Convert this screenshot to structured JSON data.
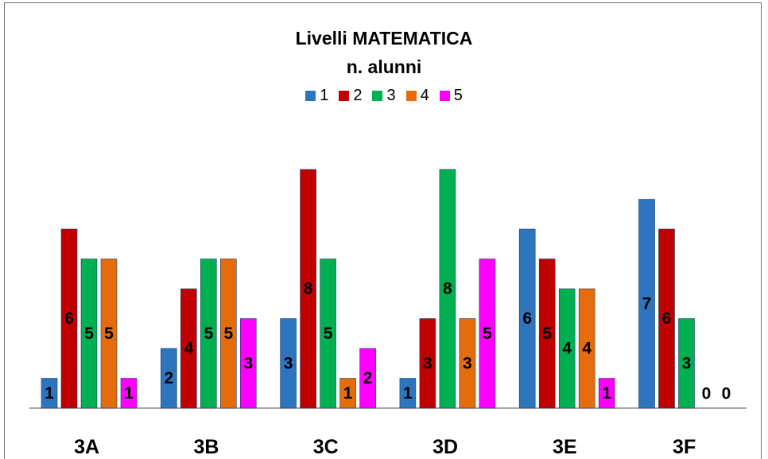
{
  "chart_data": {
    "type": "bar",
    "title": "Livelli MATEMATICA",
    "subtitle": "n. alunni",
    "categories": [
      "3A",
      "3B",
      "3C",
      "3D",
      "3E",
      "3F"
    ],
    "series": [
      {
        "name": "1",
        "color": "#2E75C0",
        "values": [
          1,
          2,
          3,
          1,
          6,
          7
        ]
      },
      {
        "name": "2",
        "color": "#C00000",
        "values": [
          6,
          4,
          8,
          3,
          5,
          6
        ]
      },
      {
        "name": "3",
        "color": "#00B050",
        "values": [
          5,
          5,
          5,
          8,
          4,
          3
        ]
      },
      {
        "name": "4",
        "color": "#E46C0A",
        "values": [
          5,
          5,
          1,
          3,
          4,
          0
        ]
      },
      {
        "name": "5",
        "color": "#FF00FF",
        "values": [
          1,
          3,
          2,
          5,
          1,
          0
        ]
      }
    ],
    "ylim": [
      0,
      8
    ],
    "grid": false,
    "legend_position": "top",
    "data_labels": true
  }
}
